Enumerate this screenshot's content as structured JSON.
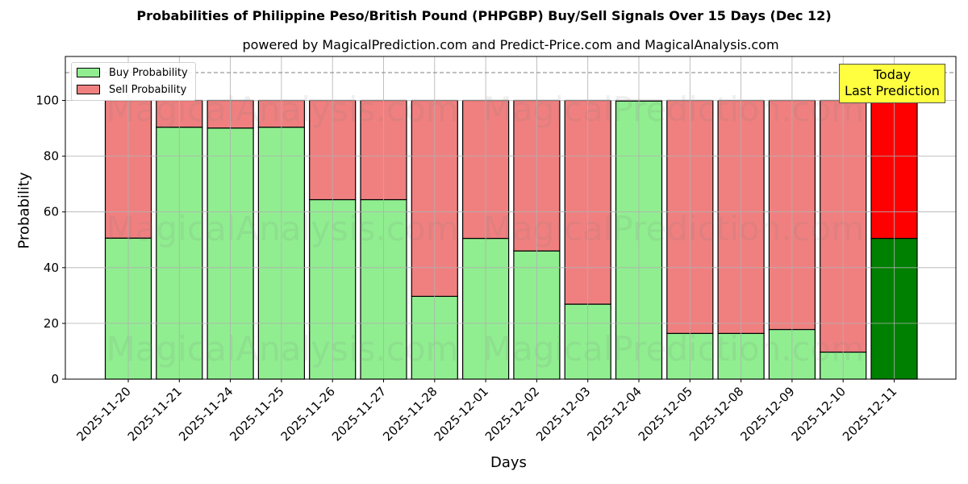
{
  "chart_data": {
    "type": "bar",
    "stacked": true,
    "title": "Probabilities of Philippine Peso/British Pound (PHPGBP) Buy/Sell Signals Over 15 Days (Dec 12)",
    "subtitle": "powered by MagicalPrediction.com and Predict-Price.com and MagicalAnalysis.com",
    "xlabel": "Days",
    "ylabel": "Probability",
    "ylim": [
      0,
      115
    ],
    "yticks": [
      0,
      20,
      40,
      60,
      80,
      100
    ],
    "grid": true,
    "legend_position": "upper left",
    "reference_line": {
      "y": 110,
      "style": "dashed",
      "color": "#808080"
    },
    "categories": [
      "2025-11-20",
      "2025-11-21",
      "2025-11-24",
      "2025-11-25",
      "2025-11-26",
      "2025-11-27",
      "2025-11-28",
      "2025-12-01",
      "2025-12-02",
      "2025-12-03",
      "2025-12-04",
      "2025-12-05",
      "2025-12-08",
      "2025-12-09",
      "2025-12-10",
      "2025-12-11"
    ],
    "series": [
      {
        "name": "Buy Probability",
        "color": "#90ee90",
        "highlight_color": "#008000",
        "values": [
          50.6,
          90.4,
          90.1,
          90.4,
          64.4,
          64.4,
          29.7,
          50.5,
          46.0,
          26.9,
          99.8,
          16.4,
          16.4,
          17.8,
          9.7,
          50.5
        ]
      },
      {
        "name": "Sell Probability",
        "color": "#f08080",
        "highlight_color": "#ff0000",
        "values": [
          49.4,
          9.6,
          9.9,
          9.6,
          35.6,
          35.6,
          70.3,
          49.5,
          54.0,
          73.1,
          0.2,
          83.6,
          83.6,
          82.2,
          90.3,
          49.5
        ]
      }
    ],
    "annotation": {
      "text_line1": "Today",
      "text_line2": "Last Prediction",
      "target": "2025-12-11",
      "background": "#ffff40"
    },
    "watermarks": [
      "MagicalAnalysis.com",
      "MagicalPrediction.com"
    ]
  }
}
